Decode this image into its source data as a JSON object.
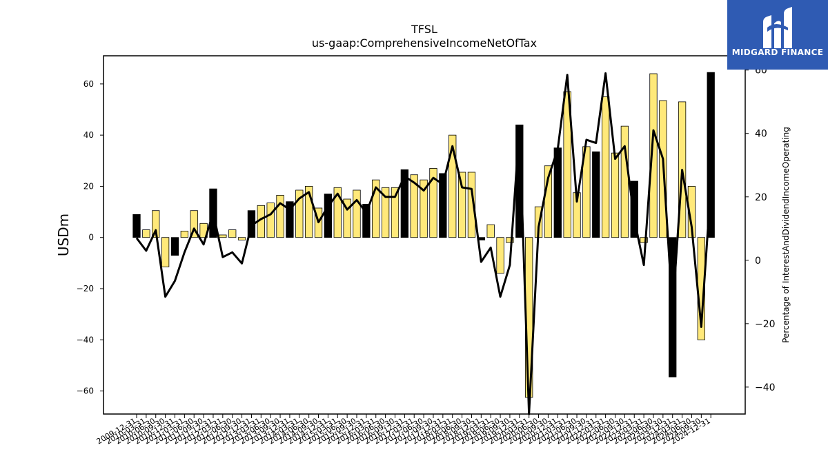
{
  "chart_data": {
    "type": "bar",
    "title": "TFSL",
    "subtitle": "us-gaap:ComprehensiveIncomeNetOfTax",
    "ylabel": "USDm",
    "ylabel_right": "Percentage of InterestAndDividendIncomeOperating",
    "ylim": [
      -69,
      71
    ],
    "ylim_right": [
      -48.5,
      64.5
    ],
    "yticks": [
      -60,
      -40,
      -20,
      0,
      20,
      40,
      60
    ],
    "yticks_right": [
      -40,
      -20,
      0,
      20,
      40,
      60
    ],
    "grid": false,
    "categories": [
      "2009-12-31",
      "2010-03-31",
      "2010-06-30",
      "2010-09-30",
      "2010-12-31",
      "2011-03-31",
      "2011-06-30",
      "2011-09-30",
      "2011-12-31",
      "2012-03-31",
      "2012-06-30",
      "2012-09-30",
      "2012-12-31",
      "2013-03-31",
      "2013-06-30",
      "2013-09-30",
      "2013-12-31",
      "2014-03-31",
      "2014-06-30",
      "2014-09-30",
      "2014-12-31",
      "2015-03-31",
      "2015-06-30",
      "2015-09-30",
      "2015-12-31",
      "2016-03-31",
      "2016-06-30",
      "2016-09-30",
      "2016-12-31",
      "2017-03-31",
      "2017-06-30",
      "2017-09-30",
      "2017-12-31",
      "2018-03-31",
      "2018-06-30",
      "2018-09-30",
      "2018-12-31",
      "2019-03-31",
      "2019-06-30",
      "2019-09-30",
      "2019-12-31",
      "2020-03-31",
      "2020-06-30",
      "2020-09-30",
      "2020-12-31",
      "2021-03-31",
      "2021-06-30",
      "2021-09-30",
      "2021-12-31",
      "2022-03-31",
      "2022-06-30",
      "2022-09-30",
      "2022-12-31",
      "2023-03-31",
      "2023-06-30",
      "2023-09-30",
      "2023-12-31",
      "2024-03-31",
      "2024-06-30",
      "2024-09-30",
      "2024-12-31"
    ],
    "series": [
      {
        "type": "bar",
        "axis": "left",
        "values": [
          9,
          3,
          10.5,
          -11.5,
          -7,
          2.5,
          10.5,
          5.5,
          19,
          1,
          3,
          -1,
          10.5,
          12.5,
          13.5,
          16.5,
          14,
          18.5,
          20,
          11.5,
          17,
          19.5,
          15,
          18.5,
          13,
          22.5,
          19.5,
          19.5,
          26.5,
          24.5,
          22.5,
          27,
          25,
          40,
          25.5,
          25.5,
          -1,
          5,
          -14,
          -2,
          44,
          -62.5,
          12,
          28,
          35,
          57,
          17.5,
          35.5,
          33.5,
          55,
          33,
          43.5,
          22,
          -2,
          64,
          53.5,
          -54.5,
          53,
          20,
          -40,
          64.5
        ],
        "colors": [
          "#000000",
          "#ffe97a",
          "#ffe97a",
          "#ffe97a",
          "#000000",
          "#ffe97a",
          "#ffe97a",
          "#ffe97a",
          "#000000",
          "#ffe97a",
          "#ffe97a",
          "#ffe97a",
          "#000000",
          "#ffe97a",
          "#ffe97a",
          "#ffe97a",
          "#000000",
          "#ffe97a",
          "#ffe97a",
          "#ffe97a",
          "#000000",
          "#ffe97a",
          "#ffe97a",
          "#ffe97a",
          "#000000",
          "#ffe97a",
          "#ffe97a",
          "#ffe97a",
          "#000000",
          "#ffe97a",
          "#ffe97a",
          "#ffe97a",
          "#000000",
          "#ffe97a",
          "#ffe97a",
          "#ffe97a",
          "#000000",
          "#ffe97a",
          "#ffe97a",
          "#ffe97a",
          "#000000",
          "#ffe97a",
          "#ffe97a",
          "#ffe97a",
          "#000000",
          "#ffe97a",
          "#ffe97a",
          "#ffe97a",
          "#000000",
          "#ffe97a",
          "#ffe97a",
          "#ffe97a",
          "#000000",
          "#ffe97a",
          "#ffe97a",
          "#ffe97a",
          "#000000",
          "#ffe97a",
          "#ffe97a",
          "#ffe97a",
          "#000000"
        ]
      },
      {
        "type": "line",
        "axis": "right",
        "color": "#000000",
        "values": [
          7,
          3,
          9.5,
          -11.5,
          -6.5,
          2.5,
          10,
          5,
          15,
          1,
          2.5,
          -1,
          11,
          13,
          14.5,
          18,
          16,
          19.5,
          21.5,
          12,
          17,
          21,
          16,
          19,
          15,
          23,
          20,
          20,
          26.5,
          24.5,
          22,
          26,
          24,
          36,
          23,
          22.5,
          -0.5,
          4,
          -11.5,
          -1.5,
          42,
          -48.5,
          10.5,
          26,
          35,
          58.5,
          18.5,
          38,
          37,
          59,
          32,
          36,
          13,
          -1.5,
          41,
          32,
          -16,
          28.5,
          10.5,
          -21,
          23.5
        ]
      }
    ]
  },
  "logo": {
    "text": "MIDGARD FINANCE",
    "background": "#2f5bb3"
  }
}
